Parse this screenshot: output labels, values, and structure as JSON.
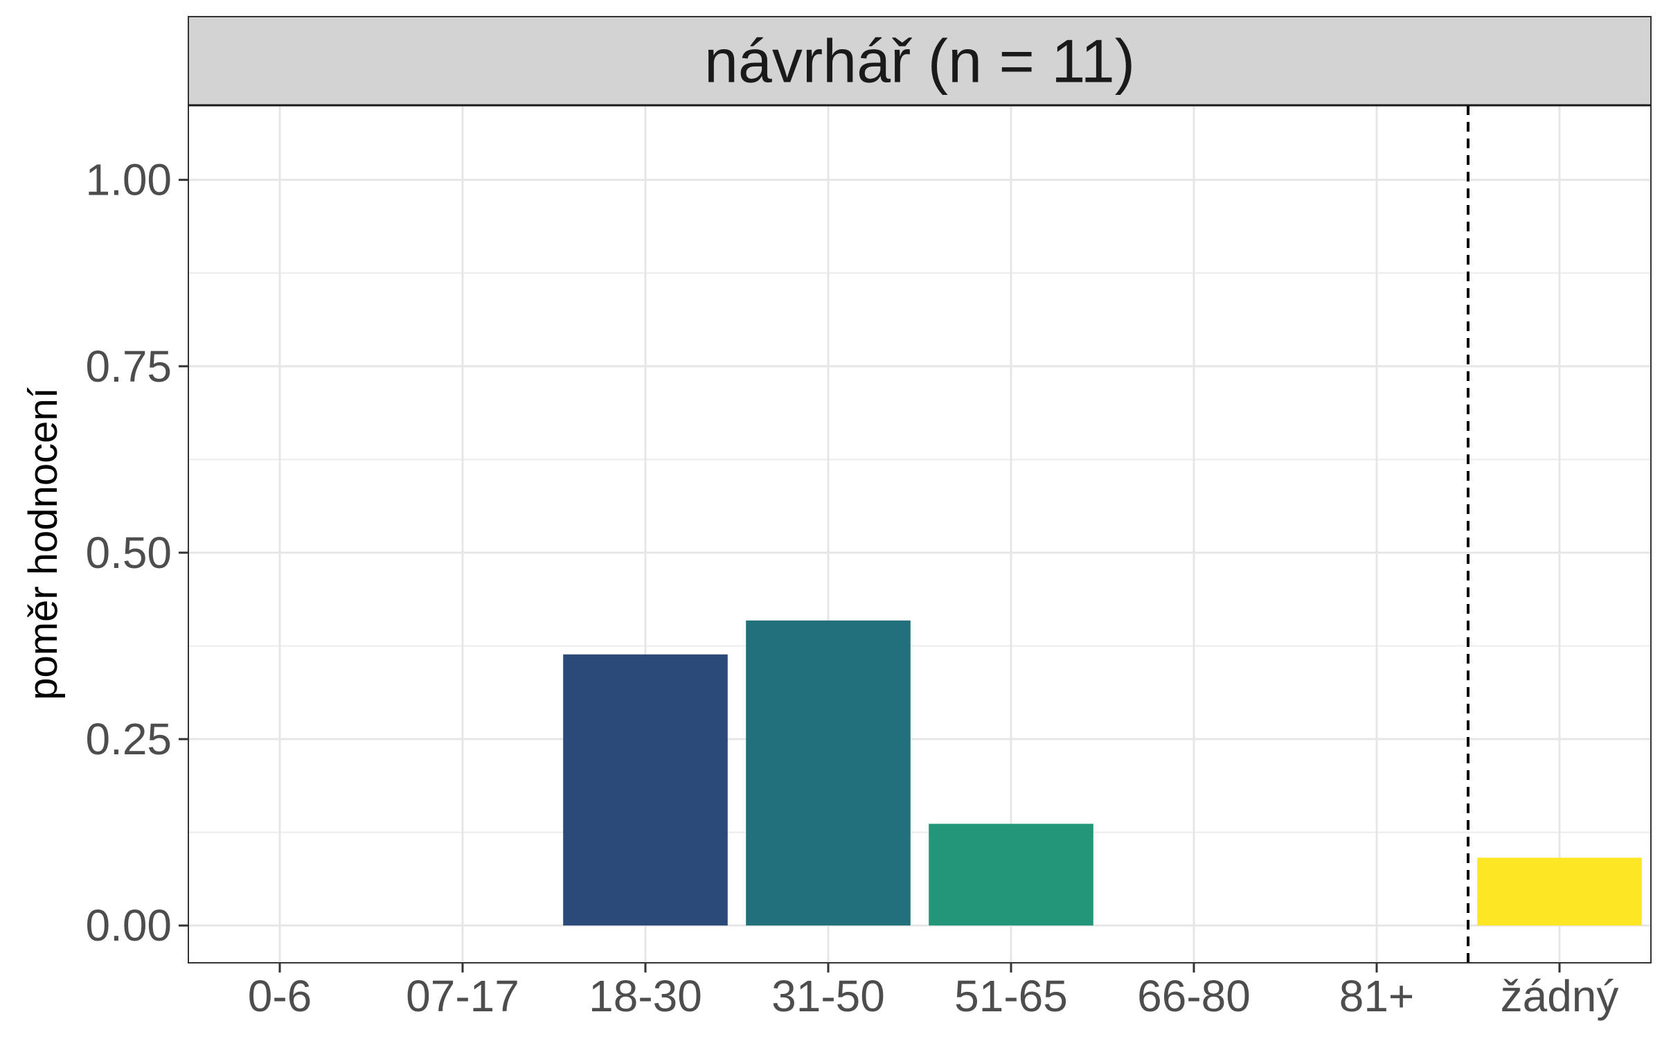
{
  "chart_data": {
    "type": "bar",
    "title": "návrhář (n = 11)",
    "xlabel": "",
    "ylabel": "poměr hodnocení",
    "categories": [
      "0-6",
      "07-17",
      "18-30",
      "31-50",
      "51-65",
      "66-80",
      "81+",
      "žádný"
    ],
    "values": [
      0,
      0,
      0.3636,
      0.4091,
      0.1364,
      0,
      0,
      0.0909
    ],
    "colors": [
      "#482878",
      "#3e4a89",
      "#2b4a7a",
      "#21707c",
      "#229676",
      "#52c569",
      "#addc30",
      "#fde725"
    ],
    "ylim": [
      -0.05,
      1.1
    ],
    "yticks": [
      0,
      0.25,
      0.5,
      0.75,
      1.0
    ],
    "ytick_labels": [
      "0.00",
      "0.25",
      "0.50",
      "0.75",
      "1.00"
    ],
    "separator_after_category": "81+",
    "grid": true
  }
}
